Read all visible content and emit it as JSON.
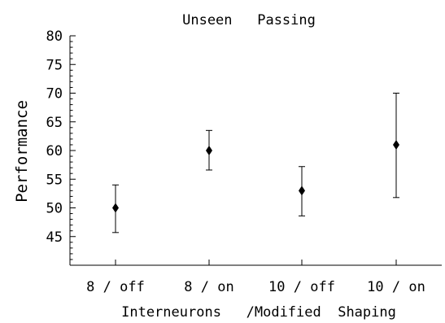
{
  "chart_data": {
    "type": "scatter",
    "title": "Unseen   Passing",
    "ylabel": "Performance",
    "xlabel": "Interneurons   /Modified  Shaping",
    "categories": [
      "8 / off",
      "8 / on",
      "10 / off",
      "10 / on"
    ],
    "values": [
      50,
      60,
      53,
      61
    ],
    "error_low": [
      45.7,
      56.6,
      48.6,
      51.8
    ],
    "error_high": [
      54,
      63.5,
      57.2,
      70
    ],
    "ylim": [
      40,
      80
    ],
    "yticks": [
      45,
      50,
      55,
      60,
      65,
      70,
      75,
      80
    ],
    "grid": false,
    "legend": "none",
    "marker": "diamond",
    "color": "#000000"
  }
}
